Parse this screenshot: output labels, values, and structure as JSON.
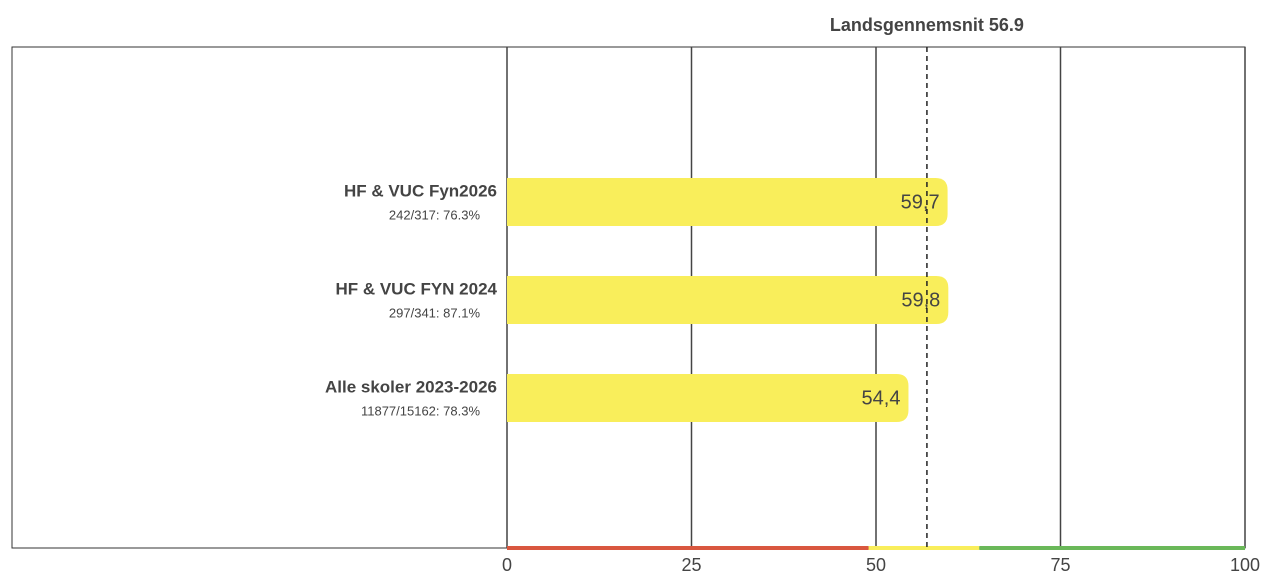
{
  "chart_data": {
    "type": "barh",
    "categories": [
      "HF & VUC Fyn2026",
      "HF & VUC FYN 2024",
      "Alle skoler 2023-2026"
    ],
    "sublabels": [
      "242/317: 76.3%",
      "297/341: 87.1%",
      "11877/15162: 78.3%"
    ],
    "values": [
      59.7,
      59.8,
      54.4
    ],
    "value_labels": [
      "59,7",
      "59,8",
      "54,4"
    ],
    "color": "#f9ee5b",
    "xlim": [
      0,
      100
    ],
    "xticks": [
      0,
      25,
      50,
      75,
      100
    ],
    "grid": true,
    "reference": {
      "value": 56.9,
      "label": "Landsgennemsnit 56.9"
    },
    "bands": [
      {
        "from": 0,
        "to": 49,
        "color": "#d9573f"
      },
      {
        "from": 49,
        "to": 64,
        "color": "#f9ee5b"
      },
      {
        "from": 64,
        "to": 100,
        "color": "#6ab859"
      }
    ]
  }
}
